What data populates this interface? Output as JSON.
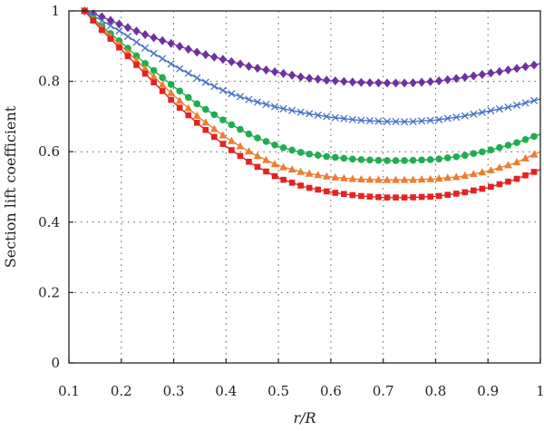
{
  "chart_data": {
    "type": "line",
    "title": "",
    "xlabel": "r/R",
    "ylabel": "Section lift coefficient",
    "xlim": [
      0.1,
      1.0
    ],
    "ylim": [
      0,
      1.0
    ],
    "xticks": [
      "0.1",
      "0.2",
      "0.3",
      "0.4",
      "0.5",
      "0.6",
      "0.7",
      "0.8",
      "0.9",
      "1"
    ],
    "yticks": [
      "0",
      "0.2",
      "0.4",
      "0.6",
      "0.8",
      "1"
    ],
    "grid": true,
    "x": [
      0.13,
      0.16,
      0.2,
      0.25,
      0.3,
      0.35,
      0.4,
      0.45,
      0.5,
      0.55,
      0.6,
      0.65,
      0.7,
      0.75,
      0.8,
      0.85,
      0.9,
      0.95,
      1.0
    ],
    "series": [
      {
        "color": "#7030a0",
        "marker": "diamond",
        "values": [
          1.0,
          0.985,
          0.96,
          0.93,
          0.905,
          0.88,
          0.86,
          0.84,
          0.825,
          0.81,
          0.802,
          0.797,
          0.795,
          0.795,
          0.8,
          0.81,
          0.822,
          0.835,
          0.85
        ]
      },
      {
        "color": "#4472c4",
        "marker": "x",
        "values": [
          1.0,
          0.975,
          0.94,
          0.89,
          0.845,
          0.805,
          0.77,
          0.745,
          0.725,
          0.71,
          0.698,
          0.69,
          0.686,
          0.685,
          0.69,
          0.7,
          0.715,
          0.73,
          0.75
        ]
      },
      {
        "color": "#1fae4f",
        "marker": "circle",
        "values": [
          1.0,
          0.96,
          0.91,
          0.845,
          0.785,
          0.73,
          0.685,
          0.645,
          0.615,
          0.595,
          0.585,
          0.578,
          0.575,
          0.575,
          0.578,
          0.588,
          0.603,
          0.623,
          0.65
        ]
      },
      {
        "color": "#ed7d31",
        "marker": "triangle",
        "values": [
          1.0,
          0.955,
          0.9,
          0.83,
          0.76,
          0.695,
          0.64,
          0.595,
          0.56,
          0.54,
          0.528,
          0.522,
          0.52,
          0.52,
          0.523,
          0.53,
          0.545,
          0.567,
          0.6
        ]
      },
      {
        "color": "#e52222",
        "marker": "square",
        "values": [
          1.0,
          0.95,
          0.89,
          0.815,
          0.74,
          0.675,
          0.615,
          0.565,
          0.525,
          0.5,
          0.485,
          0.475,
          0.47,
          0.47,
          0.473,
          0.483,
          0.498,
          0.52,
          0.55
        ]
      }
    ]
  }
}
